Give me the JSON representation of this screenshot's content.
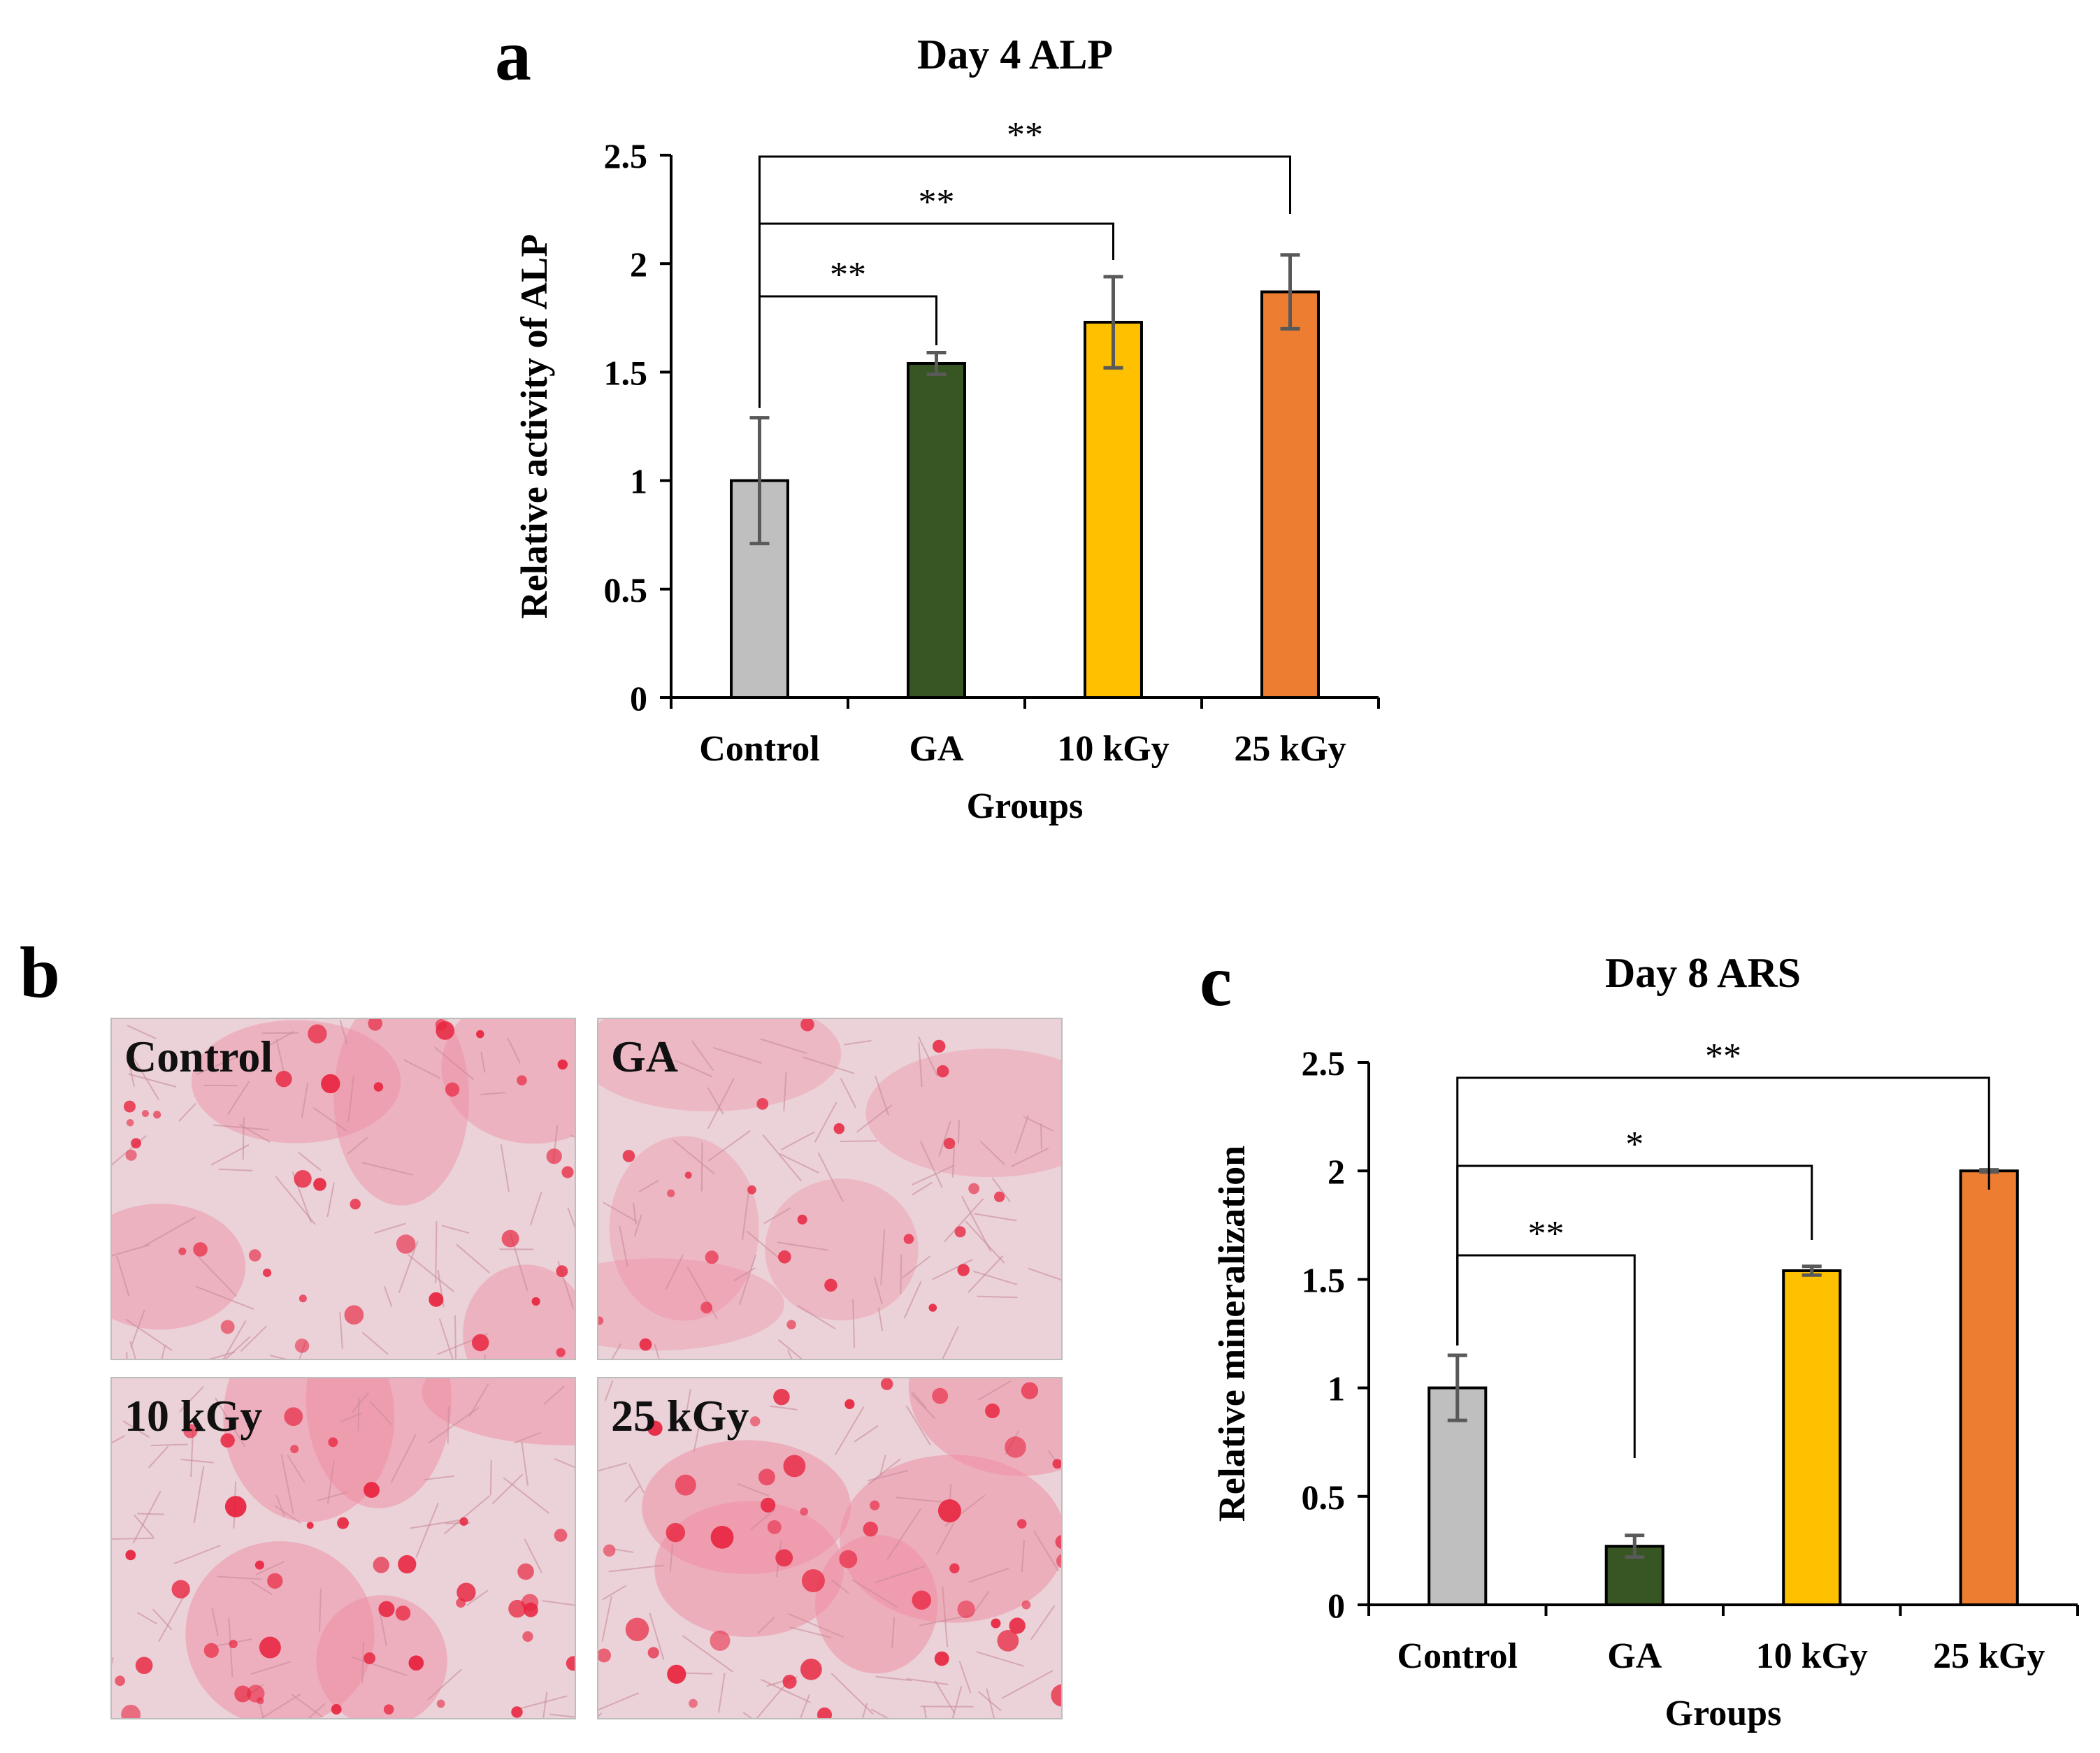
{
  "panels": {
    "a": {
      "letter": "a"
    },
    "b": {
      "letter": "b"
    },
    "c": {
      "letter": "c"
    }
  },
  "micrographs": {
    "description": "Alizarin red stained cell micrographs",
    "tiles": [
      {
        "label": "Control",
        "intensity": 0.65
      },
      {
        "label": "GA",
        "intensity": 0.35
      },
      {
        "label": "10 kGy",
        "intensity": 0.75
      },
      {
        "label": "25 kGy",
        "intensity": 0.85
      }
    ]
  },
  "chart_data": [
    {
      "type": "bar",
      "title": "Day 4 ALP",
      "xlabel": "Groups",
      "ylabel": "Relative activity of ALP",
      "categories": [
        "Control",
        "GA",
        "10 kGy",
        "25 kGy"
      ],
      "values": [
        1.0,
        1.54,
        1.73,
        1.87
      ],
      "errors": [
        0.29,
        0.05,
        0.21,
        0.17
      ],
      "colors": [
        "#bfbfbf",
        "#375623",
        "#ffc000",
        "#ed7d31"
      ],
      "ylim": [
        0,
        2.5
      ],
      "yticks": [
        "0",
        "0.5",
        "1",
        "1.5",
        "2",
        "2.5"
      ],
      "grid": false,
      "significance": [
        {
          "from": "Control",
          "to": "GA",
          "label": "**"
        },
        {
          "from": "Control",
          "to": "10 kGy",
          "label": "**"
        },
        {
          "from": "Control",
          "to": "25 kGy",
          "label": "**"
        }
      ]
    },
    {
      "type": "bar",
      "title": "Day 8 ARS",
      "xlabel": "Groups",
      "ylabel": "Relative mineralization",
      "categories": [
        "Control",
        "GA",
        "10 kGy",
        "25 kGy"
      ],
      "values": [
        1.0,
        0.27,
        1.54,
        2.0
      ],
      "errors": [
        0.15,
        0.05,
        0.02,
        0.005
      ],
      "colors": [
        "#bfbfbf",
        "#375623",
        "#ffc000",
        "#ed7d31"
      ],
      "ylim": [
        0,
        2.5
      ],
      "yticks": [
        "0",
        "0.5",
        "1",
        "1.5",
        "2",
        "2.5"
      ],
      "grid": false,
      "significance": [
        {
          "from": "Control",
          "to": "GA",
          "label": "**"
        },
        {
          "from": "Control",
          "to": "10 kGy",
          "label": "*"
        },
        {
          "from": "Control",
          "to": "25 kGy",
          "label": "**"
        }
      ]
    }
  ]
}
